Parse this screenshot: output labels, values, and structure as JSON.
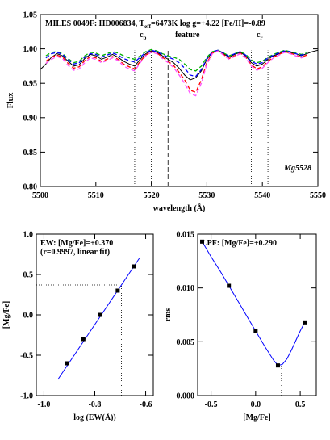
{
  "chart_data": [
    {
      "type": "line",
      "title": {
        "text": "MILES 0049F: HD006834, T",
        "sub": "eff",
        "tail": "=6473K log g=+4.22 [Fe/H]=-0.89"
      },
      "xlabel": "wavelength (Å)",
      "ylabel": "Flux",
      "annotation": "Mg5528",
      "xlim": [
        5500,
        5550
      ],
      "ylim": [
        0.8,
        1.05
      ],
      "xticks": [
        5500,
        5510,
        5520,
        5530,
        5540,
        5550
      ],
      "yticks": [
        {
          "value": 0.8,
          "label": "0.80"
        },
        {
          "value": 0.85,
          "label": "0.85"
        },
        {
          "value": 0.9,
          "label": "0.90"
        },
        {
          "value": 0.95,
          "label": "0.95"
        },
        {
          "value": 1.0,
          "label": "1.00"
        },
        {
          "value": 1.05,
          "label": "1.05"
        }
      ],
      "x": [
        5500,
        5501,
        5502,
        5503,
        5504,
        5505,
        5506,
        5507,
        5508,
        5509,
        5510,
        5511,
        5512,
        5513,
        5514,
        5515,
        5516,
        5517,
        5518,
        5519,
        5520,
        5521,
        5522,
        5523,
        5524,
        5525,
        5526,
        5527,
        5528,
        5529,
        5530,
        5531,
        5532,
        5533,
        5534,
        5535,
        5536,
        5537,
        5538,
        5539,
        5540,
        5541,
        5542,
        5543,
        5544,
        5545,
        5546,
        5547,
        5548,
        5549,
        5550
      ],
      "series": [
        {
          "color": "#000000",
          "dash": "solid",
          "values": [
            0.97,
            0.978,
            0.988,
            0.993,
            0.99,
            0.982,
            0.975,
            0.977,
            0.986,
            0.992,
            0.99,
            0.985,
            0.988,
            0.992,
            0.988,
            0.982,
            0.978,
            0.975,
            0.985,
            0.993,
            0.997,
            0.995,
            0.99,
            0.985,
            0.98,
            0.972,
            0.962,
            0.955,
            0.958,
            0.968,
            0.985,
            0.995,
            0.998,
            0.993,
            0.988,
            0.992,
            0.995,
            0.99,
            0.98,
            0.975,
            0.978,
            0.985,
            0.99,
            0.993,
            0.997,
            0.995,
            0.993,
            0.99,
            0.993,
            0.996,
            0.998
          ]
        },
        {
          "color": "#00b000",
          "dash": "dashed",
          "values": [
            null,
            0.99,
            0.995,
            0.996,
            0.993,
            0.986,
            0.98,
            0.982,
            0.99,
            0.995,
            0.994,
            0.99,
            0.993,
            0.996,
            0.994,
            0.99,
            0.987,
            0.985,
            0.99,
            0.996,
            0.999,
            0.997,
            0.993,
            0.99,
            0.988,
            0.985,
            0.978,
            0.97,
            0.968,
            0.975,
            0.988,
            0.996,
            0.998,
            0.994,
            0.99,
            0.993,
            0.996,
            0.992,
            0.984,
            0.98,
            0.982,
            0.988,
            0.992,
            0.995,
            0.998,
            0.996,
            0.994,
            0.992,
            0.994,
            null,
            null
          ]
        },
        {
          "color": "#0000ff",
          "dash": "dashed",
          "values": [
            null,
            0.987,
            0.993,
            0.995,
            0.992,
            0.984,
            0.978,
            0.98,
            0.988,
            0.993,
            0.992,
            0.988,
            0.991,
            0.994,
            0.991,
            0.986,
            0.983,
            0.981,
            0.988,
            0.995,
            0.998,
            0.996,
            0.992,
            0.988,
            0.985,
            0.98,
            0.972,
            0.962,
            0.96,
            0.97,
            0.986,
            0.996,
            0.998,
            0.994,
            0.989,
            0.993,
            0.996,
            0.991,
            0.982,
            0.978,
            0.98,
            0.987,
            0.991,
            0.994,
            0.997,
            0.996,
            0.993,
            0.991,
            0.993,
            null,
            null
          ]
        },
        {
          "color": "#ff0000",
          "dash": "dashed",
          "values": [
            null,
            0.982,
            0.988,
            0.991,
            0.988,
            0.979,
            0.972,
            0.974,
            0.983,
            0.989,
            0.987,
            0.982,
            0.985,
            0.989,
            0.985,
            0.978,
            0.974,
            0.971,
            0.982,
            0.991,
            0.996,
            0.994,
            0.988,
            0.982,
            0.976,
            0.966,
            0.955,
            0.94,
            0.937,
            0.955,
            0.98,
            0.994,
            0.997,
            0.992,
            0.986,
            0.99,
            0.994,
            0.988,
            0.977,
            0.971,
            0.974,
            0.982,
            0.988,
            0.992,
            0.996,
            0.994,
            0.991,
            0.988,
            0.991,
            null,
            null
          ]
        },
        {
          "color": "#ff50ff",
          "dash": "dashed",
          "values": [
            null,
            0.979,
            0.985,
            0.989,
            0.986,
            0.976,
            0.969,
            0.971,
            0.98,
            0.987,
            0.985,
            0.98,
            0.983,
            0.987,
            0.983,
            0.975,
            0.971,
            0.968,
            0.98,
            0.99,
            0.995,
            0.993,
            0.986,
            0.98,
            0.973,
            0.962,
            0.95,
            0.935,
            0.932,
            0.95,
            0.978,
            0.993,
            0.997,
            0.991,
            0.985,
            0.989,
            0.993,
            0.987,
            0.975,
            0.969,
            0.972,
            0.98,
            0.987,
            0.991,
            0.995,
            0.993,
            0.99,
            0.987,
            0.99,
            null,
            null
          ]
        }
      ],
      "regions": [
        {
          "range": [
            5517,
            5520
          ],
          "style": "dotted",
          "label": {
            "text": "c",
            "sub": "b"
          }
        },
        {
          "range": [
            5523,
            5530
          ],
          "style": "dashed",
          "label": {
            "text": "feature"
          }
        },
        {
          "range": [
            5538,
            5541
          ],
          "style": "dotted",
          "label": {
            "text": "c",
            "sub": "r"
          }
        }
      ]
    },
    {
      "type": "scatter",
      "xlabel": "log (EW(Å))",
      "ylabel": "[Mg/Fe]",
      "annotations": [
        "EW: [Mg/Fe]=+0.370",
        "(r=0.9997, linear fit)"
      ],
      "xlim": [
        -1.03,
        -0.57
      ],
      "ylim": [
        -1.0,
        1.0
      ],
      "xticks": [
        {
          "value": -1.0,
          "label": "-1.0"
        },
        {
          "value": -0.8,
          "label": "-0.8"
        },
        {
          "value": -0.6,
          "label": "-0.6"
        }
      ],
      "yticks": [
        {
          "value": -1.0,
          "label": "-1.0"
        },
        {
          "value": -0.5,
          "label": "-0.5"
        },
        {
          "value": 0.0,
          "label": "0.0"
        },
        {
          "value": 0.5,
          "label": "0.5"
        },
        {
          "value": 1.0,
          "label": "1.0"
        }
      ],
      "marker_color": "#000000",
      "x": [
        -0.91,
        -0.845,
        -0.78,
        -0.71,
        -0.645
      ],
      "values": [
        -0.6,
        -0.3,
        0.0,
        0.3,
        0.6
      ],
      "fit": {
        "color": "#0000ff",
        "x": [
          -0.945,
          -0.625
        ],
        "values": [
          -0.8,
          0.7
        ]
      },
      "result": {
        "x": -0.695,
        "y": 0.37
      }
    },
    {
      "type": "scatter",
      "xlabel": "[Mg/Fe]",
      "ylabel": "rms",
      "annotations": [
        "LPF: [Mg/Fe]=+0.290"
      ],
      "xlim": [
        -0.65,
        0.68
      ],
      "ylim": [
        0.0,
        0.015
      ],
      "xticks": [
        {
          "value": -0.5,
          "label": "-0.5"
        },
        {
          "value": 0.0,
          "label": "0.0"
        },
        {
          "value": 0.5,
          "label": "0.5"
        }
      ],
      "yticks": [
        {
          "value": 0.0,
          "label": "0.000"
        },
        {
          "value": 0.005,
          "label": "0.005"
        },
        {
          "value": 0.01,
          "label": "0.010"
        },
        {
          "value": 0.015,
          "label": "0.015"
        }
      ],
      "marker_color": "#000000",
      "x": [
        -0.6,
        -0.3,
        0.0,
        0.25,
        0.55
      ],
      "values": [
        0.0143,
        0.0102,
        0.006,
        0.0028,
        0.0068
      ],
      "fit": {
        "color": "#0000ff",
        "x": [
          -0.6,
          -0.5,
          -0.4,
          -0.3,
          -0.2,
          -0.1,
          0.0,
          0.1,
          0.2,
          0.25,
          0.3,
          0.35,
          0.4,
          0.45,
          0.5,
          0.55
        ],
        "values": [
          0.0143,
          0.0129,
          0.0116,
          0.0102,
          0.0088,
          0.0074,
          0.006,
          0.0046,
          0.0033,
          0.0028,
          0.0029,
          0.0034,
          0.0042,
          0.0051,
          0.006,
          0.0068
        ]
      },
      "result": {
        "x": 0.29,
        "y": 0.0028
      }
    }
  ]
}
